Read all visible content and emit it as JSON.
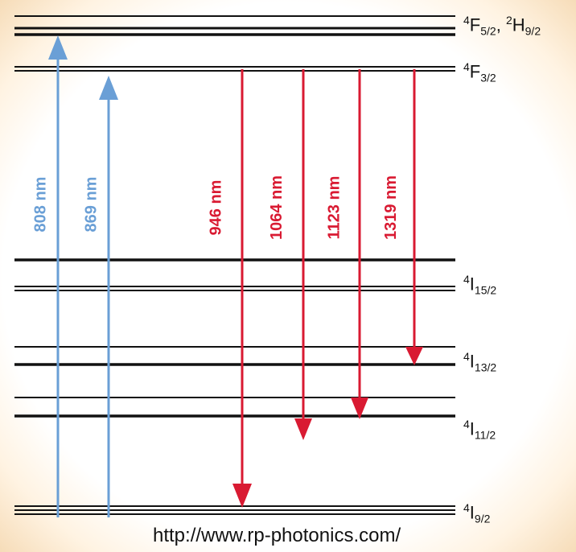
{
  "colors": {
    "level": "#111111",
    "pump": "#6a9fd6",
    "emission": "#d91a32"
  },
  "levels": [
    {
      "id": "4F52-2H92",
      "pre1": "4",
      "main1": "F",
      "sub1": "5/2",
      "sep": ", ",
      "pre2": "2",
      "main2": "H",
      "sub2": "9/2"
    },
    {
      "id": "4F32",
      "pre1": "4",
      "main1": "F",
      "sub1": "3/2"
    },
    {
      "id": "4I152",
      "pre1": "4",
      "main1": "I",
      "sub1": "15/2"
    },
    {
      "id": "4I132",
      "pre1": "4",
      "main1": "I",
      "sub1": "13/2"
    },
    {
      "id": "4I112",
      "pre1": "4",
      "main1": "I",
      "sub1": "11/2"
    },
    {
      "id": "4I92",
      "pre1": "4",
      "main1": "I",
      "sub1": "9/2"
    }
  ],
  "pump_transitions": [
    {
      "label": "808 nm",
      "from": "4I92",
      "to": "4F52-2H92"
    },
    {
      "label": "869 nm",
      "from": "4I92",
      "to": "4F32"
    }
  ],
  "emission_transitions": [
    {
      "label": "946 nm",
      "from": "4F32",
      "to": "4I92"
    },
    {
      "label": "1064 nm",
      "from": "4F32",
      "to": "4I112"
    },
    {
      "label": "1123 nm",
      "from": "4F32",
      "to": "4I112"
    },
    {
      "label": "1319 nm",
      "from": "4F32",
      "to": "4I132"
    }
  ],
  "source_url": "http://www.rp-photonics.com/"
}
